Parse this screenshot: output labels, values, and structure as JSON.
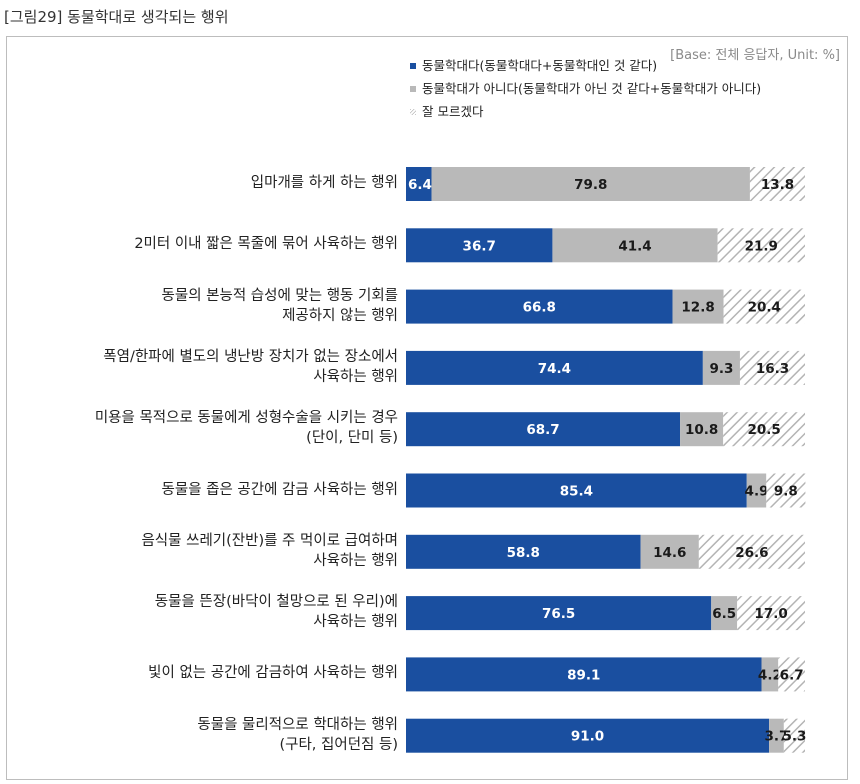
{
  "figure": {
    "title": "[그림29] 동물학대로 생각되는 행위",
    "base_note": "[Base: 전체 응답자, Unit: %]"
  },
  "legend": [
    {
      "label": "동물학대다(동물학대다+동물학대인 것 같다)",
      "color": "#1a4fa0",
      "pattern": "solid"
    },
    {
      "label": "동물학대가 아니다(동물학대가 아닌 것 같다+동물학대가 아니다)",
      "color": "#b9b9b9",
      "pattern": "solid"
    },
    {
      "label": "잘 모르겠다",
      "color": "#b9b9b9",
      "pattern": "hatch"
    }
  ],
  "chart_data": {
    "type": "bar",
    "orientation": "horizontal",
    "stacked": true,
    "unit": "%",
    "xlim": [
      0,
      100
    ],
    "categories": [
      [
        "입마개를 하게 하는 행위"
      ],
      [
        "2미터 이내 짧은 목줄에 묶어 사육하는 행위"
      ],
      [
        "동물의 본능적 습성에 맞는 행동 기회를",
        "제공하지 않는 행위"
      ],
      [
        "폭염/한파에 별도의 냉난방 장치가 없는 장소에서",
        "사육하는 행위"
      ],
      [
        "미용을 목적으로 동물에게 성형수술을 시키는 경우",
        "(단이, 단미 등)"
      ],
      [
        "동물을 좁은 공간에 감금 사육하는 행위"
      ],
      [
        "음식물 쓰레기(잔반)를 주 먹이로 급여하며",
        "사육하는 행위"
      ],
      [
        "동물을 뜬장(바닥이 철망으로 된 우리)에",
        "사육하는 행위"
      ],
      [
        "빛이 없는 공간에 감금하여 사육하는 행위"
      ],
      [
        "동물을 물리적으로 학대하는 행위",
        "(구타, 집어던짐 등)"
      ]
    ],
    "series": [
      {
        "name": "동물학대다(동물학대다+동물학대인 것 같다)",
        "color": "#1a4fa0",
        "values": [
          6.4,
          36.7,
          66.8,
          74.4,
          68.7,
          85.4,
          58.8,
          76.5,
          89.1,
          91.0
        ]
      },
      {
        "name": "동물학대가 아니다(동물학대가 아닌 것 같다+동물학대가 아니다)",
        "color": "#b9b9b9",
        "values": [
          79.8,
          41.4,
          12.8,
          9.3,
          10.8,
          4.9,
          14.6,
          6.5,
          4.2,
          3.7
        ]
      },
      {
        "name": "잘 모르겠다",
        "color": "#b9b9b9",
        "pattern": "hatch",
        "values": [
          13.8,
          21.9,
          20.4,
          16.3,
          20.5,
          9.8,
          26.6,
          17.0,
          6.7,
          5.3
        ]
      }
    ]
  }
}
